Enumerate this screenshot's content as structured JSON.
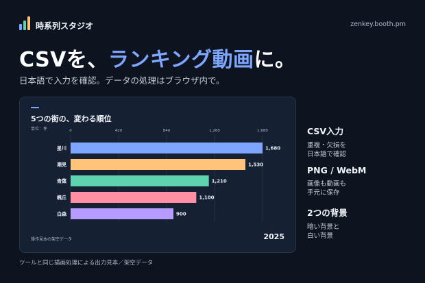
{
  "brand": {
    "name": "時系列スタジオ",
    "site": "zenkey.booth.pm",
    "logo_colors": [
      "#7ea6ff",
      "#5fd3b0",
      "#ffc37a"
    ]
  },
  "hero": {
    "headline_prefix": "CSVを、",
    "headline_accent": "ランキング動画",
    "headline_suffix": "に。",
    "subline": "日本語で入力を確認。データの処理はブラウザ内で。"
  },
  "card": {
    "title": "5つの街の、変わる順位",
    "unit": "単位：件",
    "footnote": "操作見本の架空データ",
    "year": "2025"
  },
  "features": [
    {
      "title": "CSV入力",
      "desc1": "重複・欠損を",
      "desc2": "日本語で確認"
    },
    {
      "title": "PNG / WebM",
      "desc1": "画像も動画も",
      "desc2": "手元に保存"
    },
    {
      "title": "2つの背景",
      "desc1": "暗い背景と",
      "desc2": "白い背景"
    }
  ],
  "footer": {
    "note": "ツールと同じ描画処理による出力見本／架空データ"
  },
  "chart_data": {
    "type": "bar",
    "orientation": "horizontal",
    "categories": [
      "星川",
      "潮見",
      "青葉",
      "楓丘",
      "白森"
    ],
    "values": [
      1680,
      1530,
      1210,
      1100,
      900
    ],
    "value_labels": [
      "1,680",
      "1,530",
      "1,210",
      "1,100",
      "900"
    ],
    "colors": [
      "#7ea6ff",
      "#ffc37a",
      "#5fd3b0",
      "#ff8fa3",
      "#b79cff"
    ],
    "xticks": [
      0,
      420,
      840,
      1260,
      1680
    ],
    "xtick_labels": [
      "0",
      "420",
      "840",
      "1,260",
      "1,680"
    ],
    "xlim": [
      0,
      1680
    ],
    "grid": true
  }
}
